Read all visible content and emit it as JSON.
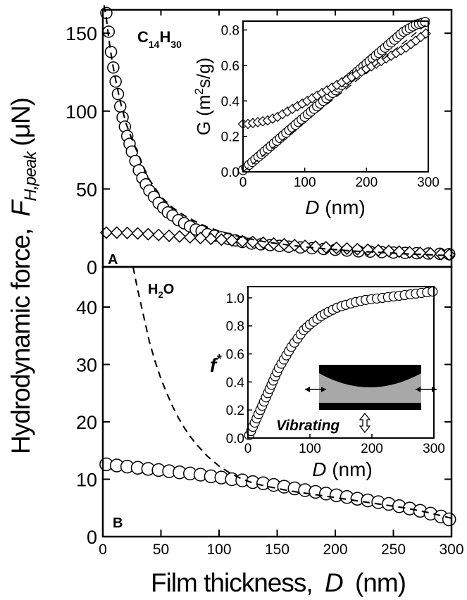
{
  "figure": {
    "ylabel_main": "Hydrodynamic force,",
    "ylabel_sym": "F",
    "ylabel_sub": "H,peak",
    "ylabel_unit": "(μN)",
    "xlabel_main": "Film thickness,",
    "xlabel_sym": "D",
    "xlabel_unit": "(nm)"
  },
  "chart_data": [
    {
      "id": "A",
      "type": "scatter",
      "panel_label": "A",
      "annotation": {
        "C": "C",
        "n1": "14",
        "H": "H",
        "n2": "30"
      },
      "xlim": [
        0,
        300
      ],
      "ylim": [
        0,
        165
      ],
      "yticks": [
        0,
        50,
        100,
        150
      ],
      "xticks": [
        0,
        50,
        100,
        150,
        200,
        250,
        300
      ],
      "series": [
        {
          "marker": "circle",
          "x": [
            3,
            5,
            7,
            9,
            11,
            13,
            15,
            17,
            19,
            21,
            23,
            25,
            28,
            31,
            34,
            37,
            40,
            44,
            48,
            52,
            56,
            60,
            65,
            70,
            75,
            80,
            85,
            90,
            96,
            102,
            108,
            114,
            120,
            128,
            136,
            144,
            152,
            160,
            170,
            180,
            190,
            200,
            210,
            220,
            230,
            240,
            250,
            260,
            270,
            280,
            290,
            298
          ],
          "y": [
            163,
            151,
            138,
            128,
            119,
            111,
            103,
            96,
            90,
            84,
            79,
            74,
            68,
            62,
            57,
            53,
            49,
            45,
            41,
            38,
            35,
            33,
            30,
            28,
            26,
            24,
            23,
            21,
            20,
            19,
            18,
            17,
            16,
            15,
            14.5,
            14,
            13.5,
            13,
            12.5,
            12,
            11.5,
            11,
            10.5,
            10,
            9.8,
            9.5,
            9.2,
            9,
            8.8,
            8.6,
            8.4,
            8.2
          ]
        },
        {
          "marker": "diamond",
          "x": [
            3,
            12,
            21,
            30,
            39,
            48,
            57,
            66,
            75,
            84,
            93,
            102,
            111,
            120,
            129,
            138,
            147,
            156,
            165,
            174,
            183,
            192,
            201,
            210,
            219,
            228,
            237,
            246,
            255,
            264,
            273,
            282,
            291,
            298
          ],
          "y": [
            22,
            22,
            21.8,
            21.5,
            21,
            20.5,
            20,
            19.5,
            19,
            18.5,
            18,
            17.5,
            17,
            16.5,
            16,
            15.5,
            15,
            14.5,
            14,
            13.5,
            13,
            12.6,
            12.2,
            11.8,
            11.4,
            11,
            10.6,
            10.2,
            9.8,
            9.4,
            9,
            8.6,
            8.2,
            7.8
          ]
        },
        {
          "marker": "dashed-line",
          "x": [
            1,
            3,
            5,
            8,
            11,
            15,
            20,
            25,
            30,
            35,
            40,
            50,
            60,
            70,
            80,
            90,
            100,
            110,
            120,
            130,
            140,
            150,
            160,
            170,
            180,
            190,
            200,
            210,
            220,
            230,
            240,
            250,
            260,
            270,
            280,
            290,
            300
          ],
          "y": [
            168,
            160,
            147,
            132,
            120,
            106,
            92,
            82,
            73,
            64,
            56,
            45,
            38,
            33,
            29,
            25.5,
            23,
            21,
            19,
            17.5,
            16,
            15,
            14,
            13.2,
            12.4,
            11.7,
            11.1,
            10.5,
            10,
            9.6,
            9.2,
            8.8,
            8.4,
            8.1,
            7.8,
            7.5,
            7.2
          ]
        }
      ],
      "inset": {
        "type": "scatter",
        "ylabel": "G (m²s/g)",
        "ylabel_pre": "G (m",
        "ylabel_sup": "2",
        "ylabel_post": "s/g)",
        "xlabel_sym": "D",
        "xlabel_unit": " (nm)",
        "xlim": [
          0,
          300
        ],
        "ylim": [
          0,
          0.85
        ],
        "xticks": [
          0,
          100,
          200,
          300
        ],
        "yticks": [
          0.0,
          0.2,
          0.4,
          0.6,
          0.8
        ],
        "ytick_labels": [
          "0.0",
          "0.2",
          "0.4",
          "0.6",
          "0.8"
        ],
        "series": [
          {
            "marker": "circle",
            "x": [
              0,
              5,
              10,
              15,
              20,
              25,
              30,
              35,
              40,
              45,
              50,
              55,
              60,
              65,
              70,
              75,
              80,
              85,
              90,
              95,
              100,
              105,
              110,
              115,
              120,
              125,
              130,
              135,
              140,
              145,
              150,
              155,
              160,
              165,
              170,
              175,
              180,
              185,
              190,
              195,
              200,
              205,
              210,
              215,
              220,
              225,
              230,
              235,
              240,
              245,
              250,
              255,
              260,
              265,
              270,
              275,
              280,
              285,
              290,
              295
            ],
            "y": [
              0.01,
              0.025,
              0.04,
              0.055,
              0.07,
              0.085,
              0.1,
              0.115,
              0.13,
              0.145,
              0.16,
              0.175,
              0.19,
              0.205,
              0.22,
              0.235,
              0.25,
              0.265,
              0.28,
              0.295,
              0.31,
              0.325,
              0.34,
              0.355,
              0.37,
              0.385,
              0.4,
              0.415,
              0.43,
              0.445,
              0.46,
              0.475,
              0.49,
              0.505,
              0.52,
              0.535,
              0.55,
              0.565,
              0.58,
              0.595,
              0.61,
              0.625,
              0.64,
              0.655,
              0.67,
              0.685,
              0.7,
              0.715,
              0.73,
              0.745,
              0.76,
              0.775,
              0.79,
              0.8,
              0.81,
              0.82,
              0.83,
              0.835,
              0.84,
              0.845
            ]
          },
          {
            "marker": "diamond",
            "x": [
              0,
              8,
              16,
              24,
              32,
              40,
              48,
              56,
              64,
              72,
              80,
              88,
              96,
              104,
              112,
              120,
              128,
              136,
              144,
              152,
              160,
              168,
              176,
              184,
              192,
              200,
              208,
              216,
              224,
              232,
              240,
              248,
              256,
              264,
              272,
              280,
              288,
              296
            ],
            "y": [
              0.27,
              0.27,
              0.275,
              0.28,
              0.285,
              0.29,
              0.3,
              0.31,
              0.325,
              0.34,
              0.355,
              0.37,
              0.385,
              0.4,
              0.415,
              0.43,
              0.445,
              0.46,
              0.475,
              0.49,
              0.505,
              0.52,
              0.535,
              0.55,
              0.565,
              0.58,
              0.595,
              0.61,
              0.625,
              0.64,
              0.655,
              0.67,
              0.685,
              0.7,
              0.72,
              0.74,
              0.76,
              0.78
            ]
          },
          {
            "marker": "dashed-line",
            "x": [
              0,
              300
            ],
            "y": [
              0.0,
              0.84
            ]
          }
        ]
      }
    },
    {
      "id": "B",
      "type": "scatter",
      "panel_label": "B",
      "annotation": {
        "H": "H",
        "n": "2",
        "O": "O"
      },
      "xlim": [
        0,
        300
      ],
      "ylim": [
        0,
        47
      ],
      "yticks": [
        0,
        10,
        20,
        30,
        40
      ],
      "xticks": [
        0,
        50,
        100,
        150,
        200,
        250,
        300
      ],
      "xtick_labels": [
        "0",
        "50",
        "100",
        "150",
        "200",
        "250",
        "300"
      ],
      "series": [
        {
          "marker": "circle",
          "x": [
            3,
            12,
            21,
            30,
            39,
            48,
            57,
            66,
            75,
            84,
            93,
            102,
            111,
            120,
            129,
            138,
            147,
            156,
            165,
            174,
            183,
            192,
            201,
            210,
            219,
            228,
            237,
            246,
            255,
            264,
            273,
            282,
            291,
            298
          ],
          "y": [
            12.6,
            12.4,
            12.2,
            12.0,
            11.8,
            11.6,
            11.4,
            11.2,
            11.0,
            10.8,
            10.5,
            10.3,
            10.0,
            9.8,
            9.5,
            9.3,
            9.0,
            8.7,
            8.4,
            8.1,
            7.8,
            7.5,
            7.2,
            6.9,
            6.6,
            6.3,
            6.0,
            5.7,
            5.3,
            4.9,
            4.5,
            4.0,
            3.5,
            3.0
          ]
        },
        {
          "marker": "dashed-line",
          "x": [
            26,
            30,
            35,
            40,
            45,
            50,
            55,
            60,
            65,
            70,
            75,
            80,
            90,
            100,
            110,
            120,
            130,
            140,
            150,
            160,
            170,
            180,
            190,
            200,
            210,
            220,
            230,
            240,
            250,
            260,
            270,
            280,
            290,
            300
          ],
          "y": [
            47,
            43,
            38.5,
            34,
            30.5,
            27.5,
            25,
            22.7,
            20.7,
            19,
            17.5,
            16.2,
            14,
            12.3,
            11,
            10,
            9.3,
            8.8,
            8.4,
            8.0,
            7.7,
            7.4,
            7.1,
            6.8,
            6.5,
            6.2,
            5.9,
            5.6,
            5.3,
            5.0,
            4.6,
            4.2,
            3.7,
            3.2
          ]
        }
      ],
      "inset": {
        "type": "scatter",
        "ylabel_sym": "f",
        "ylabel_sup": "*",
        "xlabel_sym": "D",
        "xlabel_unit": " (nm)",
        "xlim": [
          0,
          300
        ],
        "ylim": [
          0,
          1.08
        ],
        "xticks": [
          0,
          100,
          200,
          300
        ],
        "yticks": [
          0.0,
          0.2,
          0.4,
          0.6,
          0.8,
          1.0
        ],
        "ytick_labels": [
          "0.0",
          "0.2",
          "0.4",
          "0.6",
          "0.8",
          "1.0"
        ],
        "schematic_label": "Vibrating",
        "series": [
          {
            "marker": "circle",
            "x": [
              2,
              5,
              8,
              11,
              14,
              17,
              20,
              23,
              26,
              29,
              32,
              35,
              38,
              41,
              44,
              47,
              50,
              54,
              58,
              62,
              66,
              70,
              75,
              80,
              85,
              90,
              95,
              100,
              106,
              112,
              118,
              124,
              130,
              137,
              144,
              151,
              158,
              166,
              174,
              182,
              190,
              199,
              208,
              217,
              226,
              235,
              244,
              253,
              262,
              271,
              280,
              289,
              298
            ],
            "y": [
              0.02,
              0.05,
              0.08,
              0.11,
              0.14,
              0.17,
              0.2,
              0.23,
              0.26,
              0.29,
              0.32,
              0.35,
              0.38,
              0.41,
              0.44,
              0.47,
              0.5,
              0.53,
              0.56,
              0.59,
              0.62,
              0.65,
              0.68,
              0.71,
              0.74,
              0.77,
              0.79,
              0.81,
              0.83,
              0.85,
              0.87,
              0.885,
              0.9,
              0.915,
              0.93,
              0.94,
              0.95,
              0.96,
              0.97,
              0.978,
              0.985,
              0.99,
              0.995,
              1.0,
              1.005,
              1.01,
              1.015,
              1.02,
              1.025,
              1.03,
              1.035,
              1.04,
              1.045
            ]
          }
        ]
      }
    }
  ]
}
